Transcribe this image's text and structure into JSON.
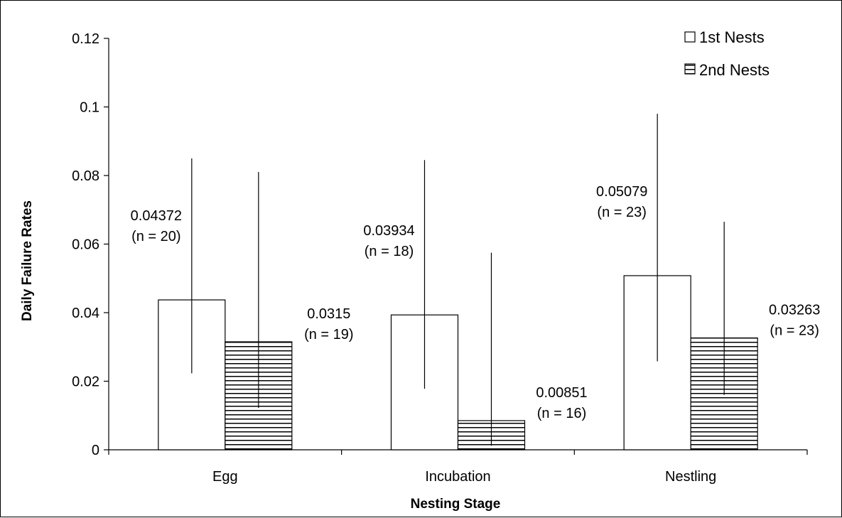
{
  "chart_data": {
    "type": "bar",
    "title": "",
    "xlabel": "Nesting Stage",
    "ylabel": "Daily Failure Rates",
    "ylim": [
      0,
      0.12
    ],
    "yticks": [
      "0",
      "0.02",
      "0.04",
      "0.06",
      "0.08",
      "0.1",
      "0.12"
    ],
    "grid": false,
    "legend_position": "top-right",
    "categories": [
      "Egg",
      "Incubation",
      "Nestling"
    ],
    "series": [
      {
        "name": "1st Nests",
        "pattern": "open",
        "values": [
          0.04372,
          0.03934,
          0.05079
        ],
        "error_low": [
          0.0223,
          0.0178,
          0.0258
        ],
        "error_high": [
          0.085,
          0.0845,
          0.098
        ],
        "labels": [
          "0.04372",
          "0.03934",
          "0.05079"
        ],
        "n_labels": [
          "(n = 20)",
          "(n = 18)",
          "(n = 23)"
        ]
      },
      {
        "name": "2nd Nests",
        "pattern": "horizontal-lines",
        "values": [
          0.0315,
          0.00851,
          0.03263
        ],
        "error_low": [
          0.0122,
          0.0012,
          0.016
        ],
        "error_high": [
          0.081,
          0.0575,
          0.0665
        ],
        "labels": [
          "0.0315",
          "0.00851",
          "0.03263"
        ],
        "n_labels": [
          "(n = 19)",
          "(n = 16)",
          "(n = 23)"
        ]
      }
    ],
    "colors": {
      "bar_fill": "#ffffff",
      "stroke": "#000000"
    }
  }
}
